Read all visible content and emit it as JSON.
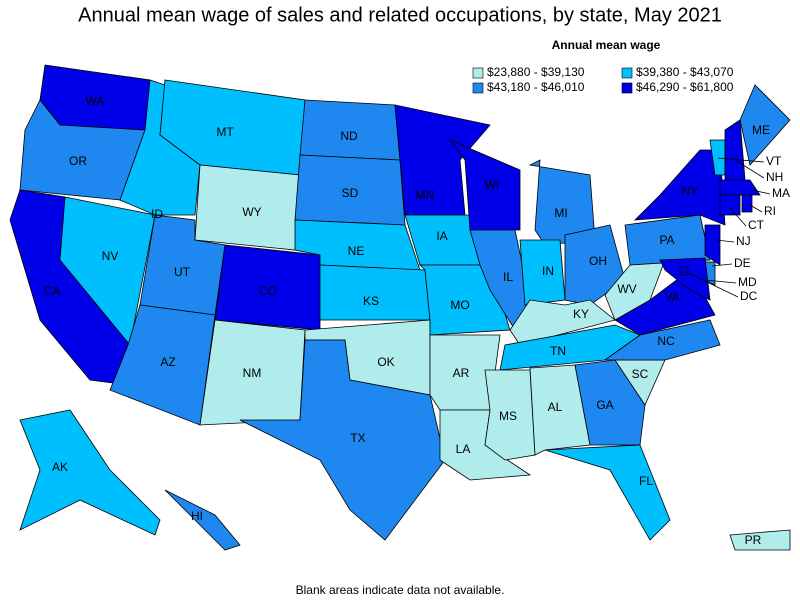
{
  "title": "Annual mean wage of sales and related occupations, by state, May 2021",
  "legend": {
    "title": "Annual mean wage",
    "items": [
      {
        "label": "$23,880 - $39,130",
        "color": "#b0ecec"
      },
      {
        "label": "$39,380 - $43,070",
        "color": "#00bfff"
      },
      {
        "label": "$43,180 - $46,010",
        "color": "#1e88f0"
      },
      {
        "label": "$46,290 - $61,800",
        "color": "#0000e8"
      }
    ]
  },
  "states": [
    {
      "name": "WA",
      "bin": 3
    },
    {
      "name": "OR",
      "bin": 2
    },
    {
      "name": "CA",
      "bin": 3
    },
    {
      "name": "NV",
      "bin": 1
    },
    {
      "name": "ID",
      "bin": 1
    },
    {
      "name": "MT",
      "bin": 1
    },
    {
      "name": "WY",
      "bin": 0
    },
    {
      "name": "UT",
      "bin": 2
    },
    {
      "name": "AZ",
      "bin": 2
    },
    {
      "name": "CO",
      "bin": 3
    },
    {
      "name": "NM",
      "bin": 0
    },
    {
      "name": "ND",
      "bin": 2
    },
    {
      "name": "SD",
      "bin": 2
    },
    {
      "name": "NE",
      "bin": 1
    },
    {
      "name": "KS",
      "bin": 1
    },
    {
      "name": "OK",
      "bin": 0
    },
    {
      "name": "TX",
      "bin": 2
    },
    {
      "name": "MN",
      "bin": 3
    },
    {
      "name": "IA",
      "bin": 1
    },
    {
      "name": "MO",
      "bin": 1
    },
    {
      "name": "AR",
      "bin": 0
    },
    {
      "name": "LA",
      "bin": 0
    },
    {
      "name": "WI",
      "bin": 3
    },
    {
      "name": "IL",
      "bin": 2
    },
    {
      "name": "MI",
      "bin": 2
    },
    {
      "name": "IN",
      "bin": 1
    },
    {
      "name": "OH",
      "bin": 2
    },
    {
      "name": "KY",
      "bin": 0
    },
    {
      "name": "TN",
      "bin": 1
    },
    {
      "name": "MS",
      "bin": 0
    },
    {
      "name": "AL",
      "bin": 0
    },
    {
      "name": "GA",
      "bin": 2
    },
    {
      "name": "FL",
      "bin": 1
    },
    {
      "name": "SC",
      "bin": 0
    },
    {
      "name": "NC",
      "bin": 2
    },
    {
      "name": "VA",
      "bin": 3
    },
    {
      "name": "WV",
      "bin": 0
    },
    {
      "name": "PA",
      "bin": 2
    },
    {
      "name": "NY",
      "bin": 3
    },
    {
      "name": "VT",
      "bin": 1
    },
    {
      "name": "NH",
      "bin": 3
    },
    {
      "name": "ME",
      "bin": 2
    },
    {
      "name": "MA",
      "bin": 3
    },
    {
      "name": "CT",
      "bin": 3
    },
    {
      "name": "RI",
      "bin": 3
    },
    {
      "name": "NJ",
      "bin": 3
    },
    {
      "name": "DE",
      "bin": 2
    },
    {
      "name": "MD",
      "bin": 3
    },
    {
      "name": "DC",
      "bin": 3
    },
    {
      "name": "AK",
      "bin": 1
    },
    {
      "name": "HI",
      "bin": 2
    },
    {
      "name": "PR",
      "bin": 0
    }
  ],
  "note": "Blank areas indicate data not available."
}
